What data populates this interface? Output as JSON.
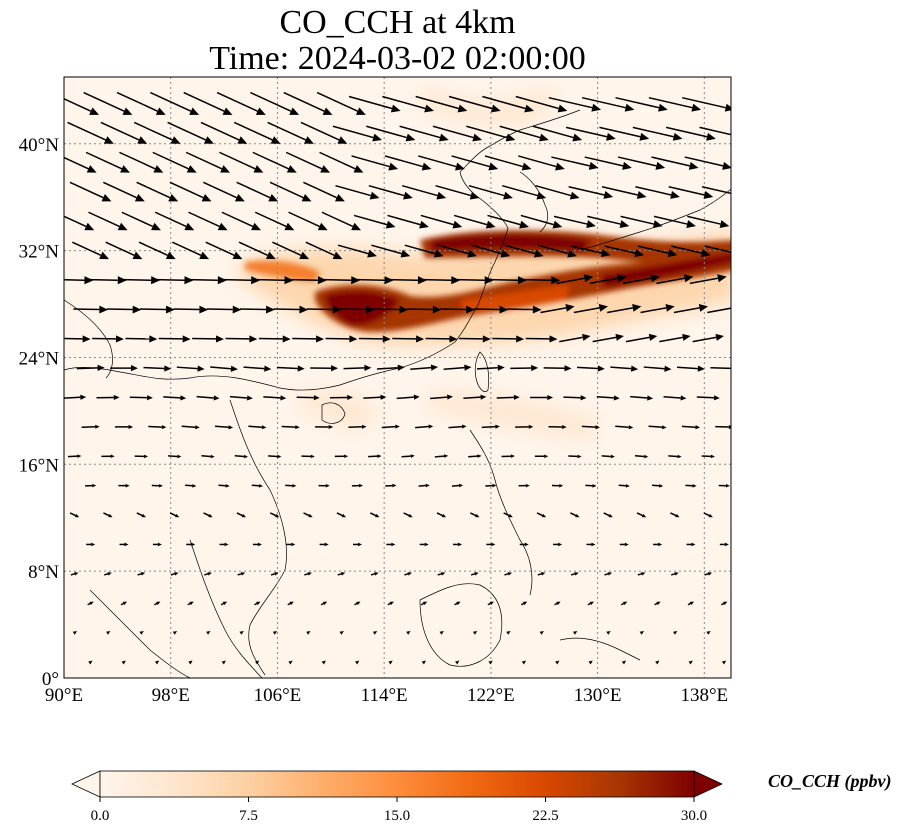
{
  "title_line1": "CO_CCH at 4km",
  "title_line2": "Time: 2024-03-02 02:00:00",
  "map": {
    "lon_range": [
      90,
      140
    ],
    "lat_range": [
      0,
      45
    ],
    "lon_ticks": [
      {
        "value": 90,
        "label": "90°E"
      },
      {
        "value": 98,
        "label": "98°E"
      },
      {
        "value": 106,
        "label": "106°E"
      },
      {
        "value": 114,
        "label": "114°E"
      },
      {
        "value": 122,
        "label": "122°E"
      },
      {
        "value": 130,
        "label": "130°E"
      },
      {
        "value": 138,
        "label": "138°E"
      }
    ],
    "lat_ticks": [
      {
        "value": 0,
        "label": "0°"
      },
      {
        "value": 8,
        "label": "8°N"
      },
      {
        "value": 16,
        "label": "16°N"
      },
      {
        "value": 24,
        "label": "24°N"
      },
      {
        "value": 32,
        "label": "32°N"
      },
      {
        "value": 40,
        "label": "40°N"
      }
    ],
    "gridlines": true,
    "field_variable": "CO_CCH",
    "plumes": [
      {
        "lon": 113.5,
        "lat": 27.5,
        "value": 30
      },
      {
        "lon": 122.0,
        "lat": 31.5,
        "value": 30
      },
      {
        "lon": 128.5,
        "lat": 32.0,
        "value": 28
      },
      {
        "lon": 133.5,
        "lat": 30.0,
        "value": 27
      },
      {
        "lon": 138.5,
        "lat": 31.5,
        "value": 28
      },
      {
        "lon": 108.5,
        "lat": 30.5,
        "value": 12
      },
      {
        "lon": 119.0,
        "lat": 27.0,
        "value": 20
      },
      {
        "lon": 125.0,
        "lat": 25.0,
        "value": 8
      },
      {
        "lon": 111.0,
        "lat": 19.5,
        "value": 5
      }
    ]
  },
  "colorbar": {
    "label": "CO_CCH (ppbv)",
    "min": 0.0,
    "max": 30.0,
    "ticks": [
      "0.0",
      "7.5",
      "15.0",
      "22.5",
      "30.0"
    ],
    "extend": "both",
    "colors": [
      "#fff5eb",
      "#fee6ce",
      "#fdd0a2",
      "#fdae6b",
      "#fd8d3c",
      "#f16913",
      "#d94801",
      "#a63603",
      "#7f0000"
    ]
  }
}
